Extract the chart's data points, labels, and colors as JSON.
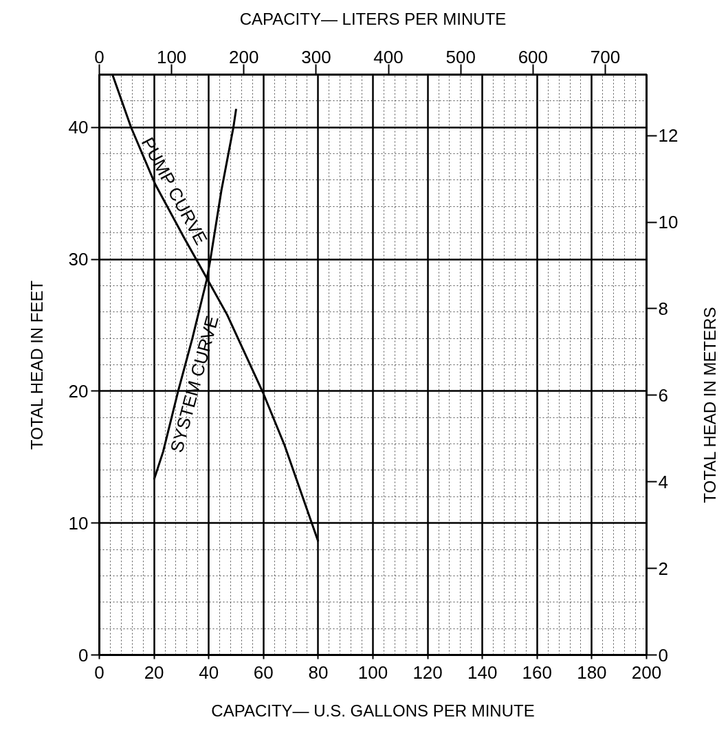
{
  "chart_data": {
    "type": "line",
    "xlabel": "CAPACITY— U.S. GALLONS PER MINUTE",
    "x2label": "CAPACITY— LITERS PER MINUTE",
    "ylabel": "TOTAL HEAD IN FEET",
    "y2label": "TOTAL HEAD IN METERS",
    "xlim": [
      0,
      200
    ],
    "xticks": [
      0,
      20,
      40,
      60,
      80,
      100,
      120,
      140,
      160,
      180,
      200
    ],
    "x2lim": [
      0,
      757.08
    ],
    "x2ticks": [
      0,
      100,
      200,
      300,
      400,
      500,
      600,
      700
    ],
    "ylim": [
      0,
      44
    ],
    "yticks": [
      0,
      10,
      20,
      30,
      40
    ],
    "y2lim": [
      0,
      13.41
    ],
    "y2ticks": [
      0,
      2,
      4,
      6,
      8,
      10,
      12
    ],
    "grid": true,
    "series": [
      {
        "name": "PUMP CURVE",
        "color": "#000000",
        "x": [
          4.8,
          11.6,
          20.4,
          30.8,
          39.2,
          46.7,
          60,
          67.7,
          80
        ],
        "values": [
          44,
          40,
          35.7,
          31.7,
          28.6,
          25.8,
          19.8,
          15.9,
          8.6
        ]
      },
      {
        "name": "SYSTEM CURVE",
        "color": "#000000",
        "x": [
          20,
          23.3,
          28.8,
          34,
          39.2,
          40.6,
          44.6,
          49,
          50
        ],
        "values": [
          13.3,
          15.4,
          20,
          24,
          28.4,
          30,
          35.2,
          40,
          41.4
        ]
      }
    ]
  }
}
